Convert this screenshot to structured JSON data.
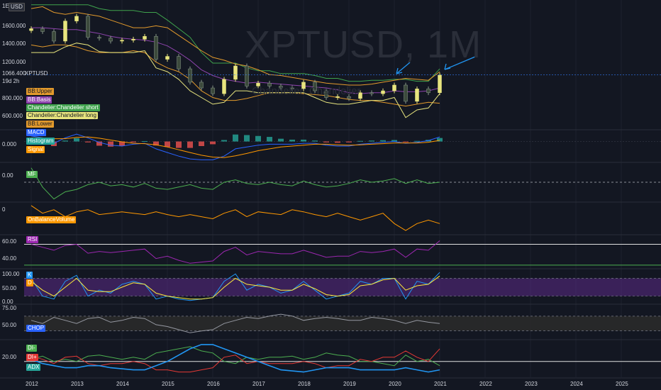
{
  "header": {
    "currency_badge": "USD",
    "top_tick_partial": "1E"
  },
  "watermark": {
    "title": "XPTUSD, 1M",
    "subtitle": "Chandelier: Chandelier"
  },
  "price_axis": {
    "ticks": [
      "1600.000",
      "1400.000",
      "1200.000",
      "800.000",
      "600.000"
    ],
    "last_price": "1066.400",
    "last_symbol": "XPTUSD",
    "countdown": "19d 2h"
  },
  "legend_main": [
    "BB:Upper",
    "BB:Basis",
    "Chandelier:Chandelier short",
    "Chandelier:Chandelier long",
    "BB:Lower"
  ],
  "legend_macd": [
    "MACD",
    "Histogram",
    "Signal"
  ],
  "macd_axis": "0.000",
  "mf": {
    "label": "MF",
    "axis": "0.00"
  },
  "obv": {
    "label": "OnBalanceVolume",
    "axis": "0"
  },
  "rsi": {
    "label": "RSI",
    "axis": [
      "60.00",
      "40.00"
    ]
  },
  "stoch": {
    "labels": [
      "K",
      "D"
    ],
    "axis": [
      "100.00",
      "50.00",
      "0.00"
    ]
  },
  "chop": {
    "label": "CHOP",
    "axis": [
      "75.00",
      "50.00"
    ]
  },
  "adx": {
    "labels": [
      "DI-",
      "DI+",
      "ADX"
    ],
    "axis": [
      "20.00"
    ]
  },
  "time_axis": [
    "2012",
    "2013",
    "2014",
    "2015",
    "2016",
    "2017",
    "2018",
    "2019",
    "2020",
    "2021",
    "2022",
    "2023",
    "2024",
    "2025"
  ],
  "colors": {
    "background": "#131722",
    "up": "#e8e57e",
    "down": "#3c4a3c",
    "bb_upper": "#e39a2c",
    "bb_basis": "#8e44ad",
    "chandelier_short": "#3fa34d",
    "chandelier_long": "#e8e57e",
    "bb_lower": "#e39a2c",
    "macd": "#2962ff",
    "signal": "#ff9800",
    "mf": "#4caf50",
    "obv": "#ff9800",
    "rsi": "#9c27b0",
    "k": "#2196f3",
    "d": "#ffeb3b",
    "chop": "#9598a1",
    "di_minus": "#4caf50",
    "di_plus": "#e53935",
    "adx": "#2196f3",
    "arrow": "#2196f3"
  },
  "chart_data": {
    "type": "candlestick",
    "symbol": "XPTUSD",
    "timeframe": "1M",
    "x": [
      "2012-01",
      "2012-04",
      "2012-07",
      "2012-10",
      "2013-01",
      "2013-04",
      "2013-07",
      "2013-10",
      "2014-01",
      "2014-04",
      "2014-07",
      "2014-10",
      "2015-01",
      "2015-04",
      "2015-07",
      "2015-10",
      "2016-01",
      "2016-04",
      "2016-07",
      "2016-10",
      "2017-01",
      "2017-04",
      "2017-07",
      "2017-10",
      "2018-01",
      "2018-04",
      "2018-07",
      "2018-10",
      "2019-01",
      "2019-04",
      "2019-07",
      "2019-10",
      "2020-01",
      "2020-04",
      "2020-07",
      "2020-10",
      "2021-01"
    ],
    "close": [
      1550,
      1520,
      1420,
      1630,
      1680,
      1460,
      1450,
      1420,
      1430,
      1440,
      1470,
      1230,
      1260,
      1130,
      990,
      930,
      870,
      1020,
      1160,
      950,
      980,
      950,
      930,
      920,
      990,
      900,
      830,
      840,
      820,
      880,
      870,
      900,
      960,
      790,
      920,
      880,
      1066
    ],
    "bb_upper": [
      1760,
      1780,
      1720,
      1700,
      1720,
      1700,
      1680,
      1640,
      1600,
      1560,
      1560,
      1580,
      1560,
      1480,
      1400,
      1320,
      1250,
      1220,
      1180,
      1160,
      1120,
      1070,
      1060,
      1040,
      1020,
      1000,
      980,
      970,
      960,
      960,
      970,
      990,
      1010,
      1030,
      1020,
      1010,
      1100
    ],
    "bb_basis": [
      1560,
      1560,
      1550,
      1540,
      1540,
      1520,
      1500,
      1470,
      1450,
      1440,
      1430,
      1410,
      1370,
      1300,
      1220,
      1120,
      1060,
      1020,
      1000,
      980,
      990,
      980,
      970,
      960,
      950,
      940,
      930,
      910,
      880,
      870,
      880,
      880,
      900,
      890,
      890,
      900,
      930
    ],
    "bb_lower": [
      1380,
      1360,
      1380,
      1380,
      1360,
      1320,
      1300,
      1300,
      1300,
      1320,
      1300,
      1200,
      1140,
      1100,
      1020,
      900,
      830,
      800,
      800,
      820,
      850,
      880,
      880,
      880,
      870,
      860,
      850,
      830,
      810,
      800,
      800,
      780,
      760,
      740,
      760,
      780,
      770
    ],
    "chandelier_short": [
      1800,
      1800,
      1800,
      1800,
      1800,
      1800,
      1760,
      1740,
      1740,
      1740,
      1720,
      1720,
      1640,
      1550,
      1460,
      1300,
      1190,
      1190,
      1190,
      1140,
      1110,
      1110,
      1080,
      1080,
      1080,
      1060,
      1030,
      1030,
      1000,
      1000,
      1010,
      1010,
      1020,
      1020,
      1000,
      1000,
      1130
    ],
    "chandelier_long": [
      1300,
      1300,
      1300,
      1360,
      1400,
      1380,
      1310,
      1300,
      1300,
      1300,
      1320,
      1140,
      1100,
      1020,
      900,
      830,
      760,
      780,
      900,
      900,
      880,
      880,
      880,
      880,
      880,
      830,
      780,
      760,
      760,
      780,
      800,
      800,
      830,
      620,
      700,
      720,
      870
    ],
    "macd": [
      30,
      20,
      -10,
      20,
      40,
      20,
      -5,
      -20,
      -25,
      -15,
      -10,
      -40,
      -60,
      -80,
      -95,
      -100,
      -100,
      -80,
      -40,
      -30,
      -20,
      -15,
      -15,
      -15,
      -10,
      -10,
      -20,
      -25,
      -25,
      -15,
      -10,
      -5,
      0,
      -10,
      -5,
      5,
      25
    ],
    "signal": [
      20,
      20,
      15,
      15,
      22,
      25,
      18,
      8,
      -2,
      -10,
      -12,
      -18,
      -30,
      -45,
      -60,
      -75,
      -85,
      -88,
      -78,
      -65,
      -50,
      -40,
      -30,
      -25,
      -20,
      -15,
      -15,
      -18,
      -20,
      -18,
      -15,
      -12,
      -8,
      -8,
      -8,
      -4,
      6
    ],
    "mf": [
      60,
      -20,
      -70,
      -40,
      -30,
      -10,
      0,
      -15,
      -10,
      -20,
      -5,
      -25,
      -30,
      -20,
      -10,
      -25,
      -30,
      0,
      10,
      -5,
      -10,
      0,
      -10,
      -15,
      5,
      -10,
      -20,
      -15,
      -5,
      10,
      0,
      5,
      15,
      -5,
      10,
      -5,
      0
    ],
    "obv": [
      1,
      -10,
      -5,
      -15,
      -8,
      -5,
      -12,
      -10,
      -8,
      -10,
      -12,
      -8,
      -12,
      -15,
      -12,
      -15,
      -18,
      -10,
      -5,
      -15,
      -8,
      -10,
      -12,
      -5,
      -8,
      -12,
      -15,
      -10,
      -15,
      -20,
      -15,
      -10,
      -25,
      -35,
      -25,
      -20,
      -25
    ],
    "rsi": [
      60,
      55,
      50,
      58,
      60,
      45,
      48,
      46,
      48,
      50,
      52,
      36,
      40,
      33,
      28,
      30,
      32,
      48,
      55,
      42,
      48,
      46,
      44,
      44,
      50,
      44,
      38,
      40,
      40,
      48,
      46,
      48,
      52,
      38,
      52,
      50,
      66
    ],
    "stoch_k": [
      80,
      20,
      10,
      70,
      90,
      20,
      40,
      30,
      60,
      70,
      60,
      10,
      20,
      10,
      5,
      10,
      15,
      70,
      95,
      40,
      60,
      50,
      30,
      40,
      70,
      40,
      10,
      20,
      30,
      70,
      60,
      80,
      80,
      10,
      70,
      60,
      100
    ],
    "stoch_d": [
      70,
      40,
      20,
      50,
      80,
      40,
      35,
      35,
      50,
      65,
      60,
      30,
      20,
      15,
      10,
      10,
      15,
      50,
      80,
      60,
      55,
      50,
      40,
      40,
      60,
      45,
      25,
      20,
      25,
      55,
      60,
      75,
      80,
      40,
      55,
      60,
      88
    ],
    "chop": [
      55,
      50,
      60,
      55,
      50,
      58,
      60,
      52,
      55,
      60,
      58,
      48,
      45,
      40,
      35,
      38,
      40,
      50,
      55,
      60,
      58,
      62,
      65,
      62,
      55,
      58,
      60,
      58,
      55,
      55,
      60,
      58,
      55,
      50,
      55,
      52,
      50
    ],
    "di_minus": [
      22,
      25,
      20,
      22,
      20,
      25,
      26,
      24,
      22,
      24,
      22,
      28,
      30,
      32,
      34,
      30,
      28,
      20,
      18,
      24,
      22,
      24,
      24,
      25,
      22,
      24,
      28,
      26,
      25,
      20,
      20,
      18,
      16,
      26,
      20,
      22,
      16
    ],
    "di_plus": [
      25,
      22,
      18,
      24,
      25,
      18,
      16,
      18,
      18,
      20,
      18,
      12,
      12,
      10,
      10,
      12,
      14,
      24,
      26,
      18,
      20,
      18,
      18,
      18,
      20,
      18,
      14,
      16,
      16,
      22,
      20,
      24,
      24,
      30,
      24,
      20,
      32
    ],
    "adx": [
      22,
      18,
      16,
      14,
      14,
      16,
      16,
      14,
      13,
      12,
      12,
      16,
      20,
      26,
      32,
      36,
      36,
      32,
      28,
      24,
      20,
      16,
      12,
      11,
      10,
      12,
      14,
      14,
      14,
      12,
      12,
      12,
      12,
      14,
      12,
      10,
      12
    ]
  }
}
